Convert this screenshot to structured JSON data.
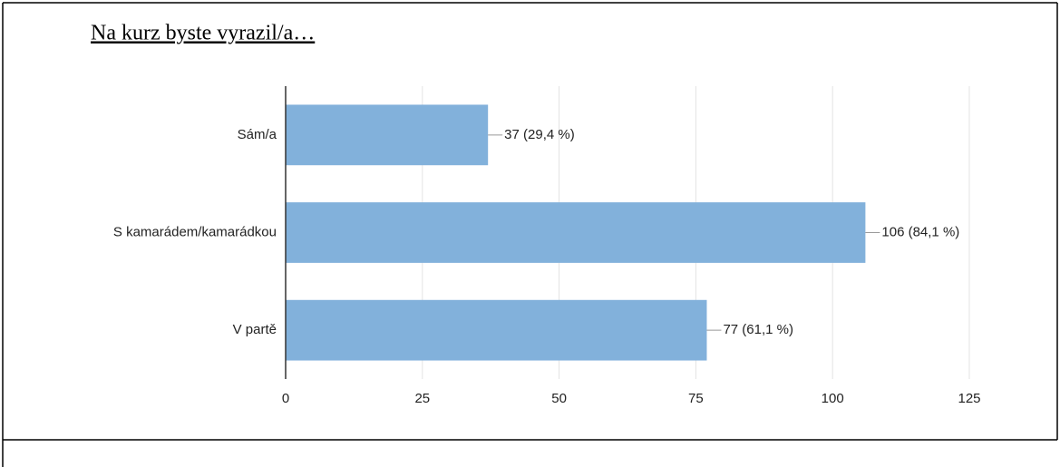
{
  "chart_data": {
    "type": "bar",
    "orientation": "horizontal",
    "title": "Na kurz byste vyrazil/a…",
    "categories": [
      "Sám/a",
      "S kamarádem/kamarádkou",
      "V partě"
    ],
    "values": [
      37,
      106,
      77
    ],
    "value_labels": [
      "37 (29,4 %)",
      "106 (84,1 %)",
      "77 (61,1 %)"
    ],
    "color": "#82b1db",
    "xlim": [
      0,
      125
    ],
    "xticks": [
      0,
      25,
      50,
      75,
      100,
      125
    ],
    "grid": true
  }
}
